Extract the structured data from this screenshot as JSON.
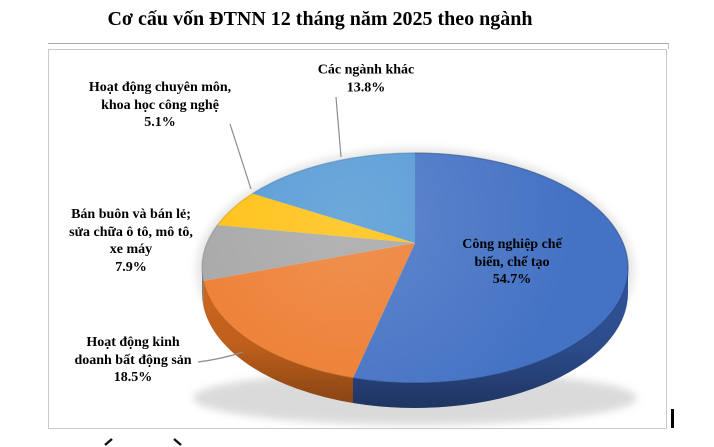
{
  "title": "Cơ cấu vốn ĐTNN 12 tháng năm 2025 theo ngành",
  "chart_data": {
    "type": "pie",
    "style": "3d",
    "title": "Cơ cấu vốn ĐTNN 12 tháng năm 2025 theo ngành",
    "unit": "%",
    "total": 100,
    "legend_position": "none",
    "start_angle_clockwise_from_top_deg": 0,
    "slices": [
      {
        "id": "cong-nghiep-che-bien-che-tao",
        "label": "Công nghiệp chế biến, chế tạo",
        "value": 54.7,
        "percent_label": "54.7%",
        "color": "#4472C4",
        "side_color": "#31549a",
        "rim_color": "#1d3a6e",
        "callout_lines": [
          "Công nghiệp chế",
          "biến, chế tạo",
          "54.7%"
        ],
        "label_inside": true
      },
      {
        "id": "kinh-doanh-bat-dong-san",
        "label": "Hoạt động kinh doanh bất động sản",
        "value": 18.5,
        "percent_label": "18.5%",
        "color": "#ED7D31",
        "side_color": "#d2691f",
        "rim_color": "#a65012",
        "callout_lines": [
          "Hoạt động kinh",
          "doanh bất động sản",
          "18.5%"
        ],
        "label_inside": false
      },
      {
        "id": "ban-buon-ban-le",
        "label": "Bán buôn và bán lẻ; sửa chữa ô tô, mô tô, xe máy",
        "value": 7.9,
        "percent_label": "7.9%",
        "color": "#A6A6A6",
        "side_color": "#818181",
        "rim_color": "#7f7f7f",
        "callout_lines": [
          "Bán buôn và bán lẻ;",
          "sửa chữa ô tô, mô tô,",
          "xe máy",
          "7.9%"
        ],
        "label_inside": false
      },
      {
        "id": "chuyen-mon-khcn",
        "label": "Hoạt động chuyên môn, khoa học công nghệ",
        "value": 5.1,
        "percent_label": "5.1%",
        "color": "#FFC010",
        "side_color": "#cf9a00",
        "rim_color": "#c79200",
        "callout_lines": [
          "Hoạt động chuyên môn,",
          "khoa học công nghệ",
          "5.1%"
        ],
        "label_inside": false
      },
      {
        "id": "cac-nganh-khac",
        "label": "Các ngành khác",
        "value": 13.8,
        "percent_label": "13.8%",
        "color": "#5398D4",
        "side_color": "#3c7ab0",
        "rim_color": "#2f6da8",
        "callout_lines": [
          "Các ngành khác",
          "13.8%"
        ],
        "label_inside": false
      }
    ]
  }
}
